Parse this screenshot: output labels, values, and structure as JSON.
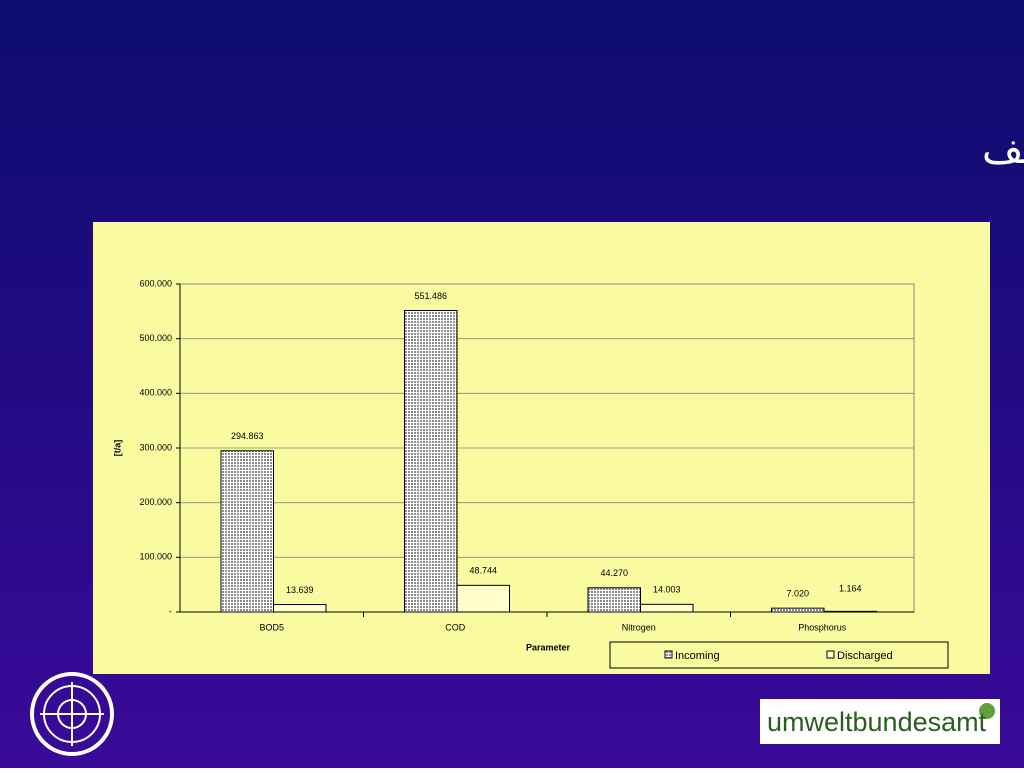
{
  "chart_data": {
    "type": "bar",
    "title": "مؤشر: فعالية المعالجة والتصريف",
    "x_label": "Parameter",
    "y_label": "[t/a]",
    "categories": [
      "BOD5",
      "COD",
      "Nitrogen",
      "Phosphorus"
    ],
    "series": [
      {
        "name": "Incoming",
        "color": "#8c8c8c",
        "pattern": "dots",
        "values": [
          294863,
          551486,
          44270,
          7020
        ],
        "value_labels": [
          "294.863",
          "551.486",
          "44.270",
          "7.020"
        ]
      },
      {
        "name": "Discharged",
        "color": "#ffffcc",
        "pattern": "none",
        "values": [
          13639,
          48744,
          14003,
          1164
        ],
        "value_labels": [
          "13.639",
          "48.744",
          "14.003",
          "1.164"
        ]
      }
    ],
    "ylim": [
      0,
      600000
    ],
    "yticks": [
      {
        "value": 0,
        "label": "-"
      },
      {
        "value": 100000,
        "label": "100.000"
      },
      {
        "value": 200000,
        "label": "200.000"
      },
      {
        "value": 300000,
        "label": "300.000"
      },
      {
        "value": 400000,
        "label": "400.000"
      },
      {
        "value": 500000,
        "label": "500.000"
      },
      {
        "value": 600000,
        "label": "600.000"
      }
    ],
    "grid": true,
    "legend": "bottom"
  },
  "logo": "umweltbundesamt"
}
